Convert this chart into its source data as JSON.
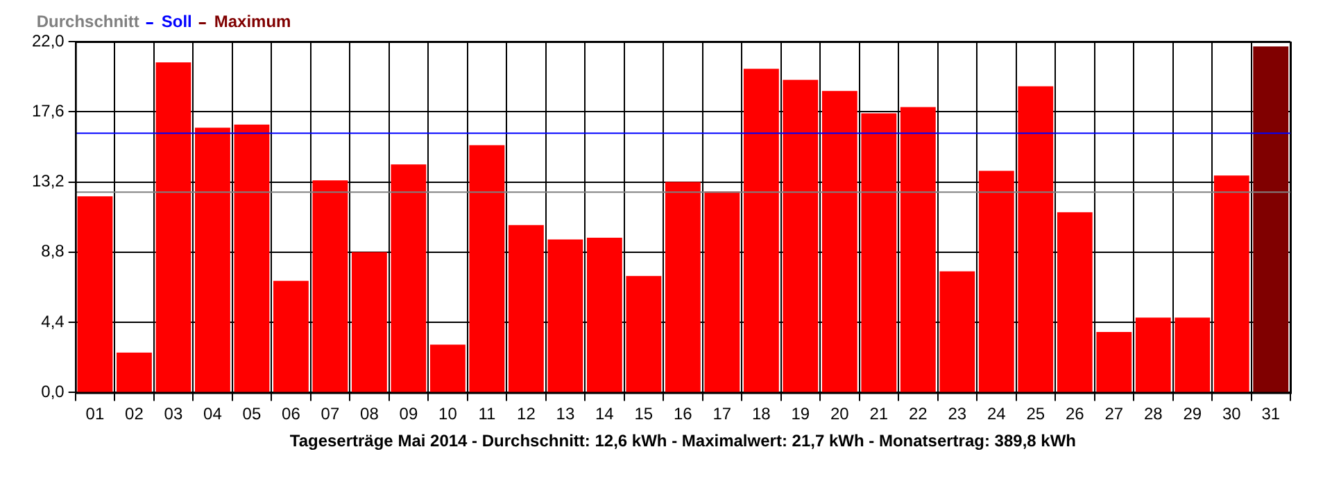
{
  "chart_data": {
    "type": "bar",
    "xlabel": "Tageserträge Mai 2014 - Durchschnitt: 12,6 kWh - Maximalwert: 21,7 kWh - Monatsertrag: 389,8 kWh",
    "categories": [
      "01",
      "02",
      "03",
      "04",
      "05",
      "06",
      "07",
      "08",
      "09",
      "10",
      "11",
      "12",
      "13",
      "14",
      "15",
      "16",
      "17",
      "18",
      "19",
      "20",
      "21",
      "22",
      "23",
      "24",
      "25",
      "26",
      "27",
      "28",
      "29",
      "30",
      "31"
    ],
    "stacked": true,
    "series": [
      {
        "color": "#ff0000",
        "values": [
          12.3,
          2.5,
          20.7,
          16.6,
          16.8,
          7.0,
          13.3,
          8.8,
          14.3,
          3.0,
          15.5,
          10.5,
          9.6,
          9.7,
          7.3,
          13.2,
          12.6,
          20.3,
          19.6,
          18.9,
          17.5,
          17.9,
          7.6,
          13.9,
          19.2,
          11.3,
          3.8,
          4.7,
          4.7,
          13.6,
          null
        ]
      },
      {
        "name": "Maximum",
        "color": "#800000",
        "values": [
          null,
          null,
          null,
          null,
          null,
          null,
          null,
          null,
          null,
          null,
          null,
          null,
          null,
          null,
          null,
          null,
          null,
          null,
          null,
          null,
          null,
          null,
          null,
          null,
          null,
          null,
          null,
          null,
          null,
          null,
          21.7
        ]
      }
    ],
    "ylim": [
      0,
      22
    ],
    "yticks": [
      {
        "value": 0,
        "label": "0,0"
      },
      {
        "value": 4.4,
        "label": "4,4"
      },
      {
        "value": 8.8,
        "label": "8,8"
      },
      {
        "value": 13.2,
        "label": "13,2"
      },
      {
        "value": 17.6,
        "label": "17,6"
      },
      {
        "value": 22,
        "label": "22,0"
      }
    ],
    "ref_lines": [
      {
        "axis": "y",
        "value": 12.6,
        "label": "Durchschnitt",
        "color": "#808080"
      },
      {
        "axis": "y",
        "value": 16.3,
        "label": "Soll",
        "color": "#0000ff"
      }
    ],
    "grid": true,
    "legend": "top left"
  }
}
